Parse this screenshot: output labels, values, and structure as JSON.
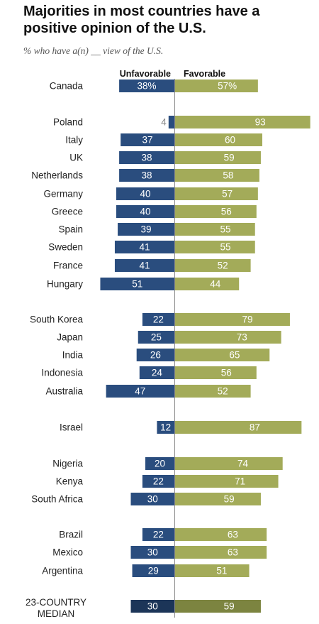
{
  "title": "Majorities in most countries have a positive opinion of the U.S.",
  "subtitle": "% who have a(n) __ view of the U.S.",
  "chart_data": {
    "type": "bar",
    "title": "Majorities in most countries have a positive opinion of the U.S.",
    "subtitle": "% who have a(n) __ view of the U.S.",
    "legend": [
      "Unfavorable",
      "Favorable"
    ],
    "series": [
      {
        "name": "Unfavorable",
        "values": [
          38,
          4,
          37,
          38,
          38,
          40,
          40,
          39,
          41,
          41,
          51,
          22,
          25,
          26,
          24,
          47,
          12,
          20,
          22,
          30,
          22,
          30,
          29,
          30
        ]
      },
      {
        "name": "Favorable",
        "values": [
          57,
          93,
          60,
          59,
          58,
          57,
          56,
          55,
          55,
          52,
          44,
          79,
          73,
          65,
          56,
          52,
          87,
          74,
          71,
          59,
          63,
          63,
          51,
          59
        ]
      }
    ],
    "categories": [
      "Canada",
      "Poland",
      "Italy",
      "UK",
      "Netherlands",
      "Germany",
      "Greece",
      "Spain",
      "Sweden",
      "France",
      "Hungary",
      "South Korea",
      "Japan",
      "India",
      "Indonesia",
      "Australia",
      "Israel",
      "Nigeria",
      "Kenya",
      "South Africa",
      "Brazil",
      "Mexico",
      "Argentina",
      "23-COUNTRY MEDIAN"
    ],
    "groups": [
      [
        0
      ],
      [
        1,
        2,
        3,
        4,
        5,
        6,
        7,
        8,
        9,
        10
      ],
      [
        11,
        12,
        13,
        14,
        15
      ],
      [
        16
      ],
      [
        17,
        18,
        19
      ],
      [
        20,
        21,
        22
      ],
      [
        23
      ]
    ],
    "value_suffix_first_row": "%",
    "colors": {
      "unfavorable": "#2a4d7e",
      "favorable": "#a3ab59",
      "unfavorable_median": "#1c3558",
      "favorable_median": "#7c8440",
      "small_value_text": "#8a8a8a"
    }
  }
}
